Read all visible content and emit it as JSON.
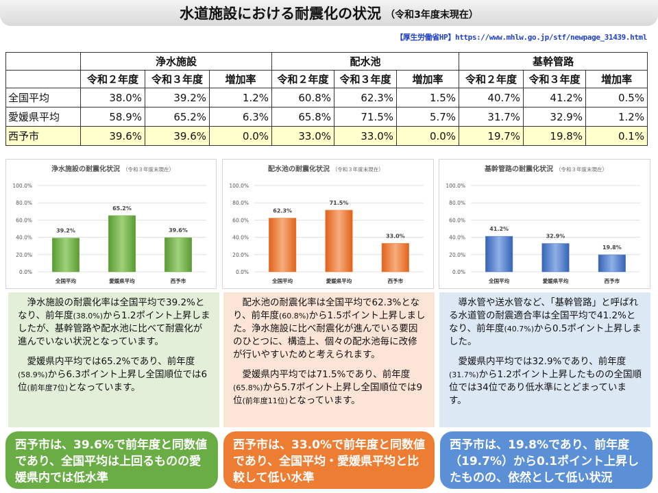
{
  "page": {
    "title": "水道施設における耐震化の状況",
    "subtitle": "（令和3年度末現在）",
    "source": "【厚生労働省HP】https://www.mhlw.go.jp/stf/newpage_31439.html"
  },
  "table": {
    "groups": [
      "浄水施設",
      "配水池",
      "基幹管路"
    ],
    "subheaders": [
      "令和２年度",
      "令和３年度",
      "増加率"
    ],
    "rows": [
      {
        "label": "全国平均",
        "values": [
          "38.0%",
          "39.2%",
          "1.2%",
          "60.8%",
          "62.3%",
          "1.5%",
          "40.7%",
          "41.2%",
          "0.5%"
        ]
      },
      {
        "label": "愛媛県平均",
        "values": [
          "58.9%",
          "65.2%",
          "6.3%",
          "65.8%",
          "71.5%",
          "5.7%",
          "31.7%",
          "32.9%",
          "1.2%"
        ]
      },
      {
        "label": "西予市",
        "values": [
          "39.6%",
          "39.6%",
          "0.0%",
          "33.0%",
          "33.0%",
          "0.0%",
          "19.7%",
          "19.8%",
          "0.1%"
        ]
      }
    ]
  },
  "colors": {
    "green": "#6fae46",
    "orange": "#ee7d34",
    "blue": "#4a78c8",
    "green_bg": "#e3efd9",
    "orange_bg": "#fce4d6",
    "blue_bg": "#dde8f5",
    "summary_green": "#6aad45",
    "summary_orange": "#ee7d34",
    "summary_blue": "#5b8fd6"
  },
  "chart_data": [
    {
      "type": "bar",
      "title": "浄水施設の耐震化状況",
      "title_note": "（令和３年度末現在）",
      "categories": [
        "全国平均",
        "愛媛県平均",
        "西予市"
      ],
      "values": [
        39.2,
        65.2,
        39.6
      ],
      "value_labels": [
        "39.2%",
        "65.2%",
        "39.6%"
      ],
      "ylim": [
        0,
        100
      ],
      "yticks": [
        "0.0%",
        "20.0%",
        "40.0%",
        "60.0%",
        "80.0%",
        "100.0%"
      ],
      "color": "green",
      "grid": true
    },
    {
      "type": "bar",
      "title": "配水池の耐震化状況",
      "title_note": "（令和３年度末現在）",
      "categories": [
        "全国平均",
        "愛媛県平均",
        "西予市"
      ],
      "values": [
        62.3,
        71.5,
        33.0
      ],
      "value_labels": [
        "62.3%",
        "71.5%",
        "33.0%"
      ],
      "ylim": [
        0,
        100
      ],
      "yticks": [
        "0.0%",
        "20.0%",
        "40.0%",
        "60.0%",
        "80.0%",
        "100.0%"
      ],
      "color": "orange",
      "grid": true
    },
    {
      "type": "bar",
      "title": "基幹管路の耐震化状況",
      "title_note": "（令和３年度末現在）",
      "categories": [
        "全国平均",
        "愛媛県平均",
        "西予市"
      ],
      "values": [
        41.2,
        32.9,
        19.8
      ],
      "value_labels": [
        "41.2%",
        "32.9%",
        "19.8%"
      ],
      "ylim": [
        0,
        100
      ],
      "yticks": [
        "0.0%",
        "20.0%",
        "40.0%",
        "60.0%",
        "80.0%",
        "100.0%"
      ],
      "color": "blue",
      "grid": true
    }
  ],
  "descriptions": [
    {
      "p1": [
        "浄水施設の耐震化率は全国平均で39.2%となり、前年度",
        "(38.0%)",
        "から1.2ポイント上昇しましたが、基幹管路や配水池に比べて耐震化が進んでいない状況となっています。"
      ],
      "p2": [
        "愛媛県内平均では65.2%であり、前年度",
        "(58.9%)",
        "から6.3ポイント上昇し全国順位では6位",
        "(前年度7位)",
        "となっています。"
      ]
    },
    {
      "p1": [
        "配水池の耐震化率は全国平均で62.3%となり、前年度",
        "(60.8%)",
        "から1.5ポイント上昇しました。浄水施設に比べ耐震化が進んでいる要因のひとつに、構造上、個々の配水池毎に改修が行いやすいためと考えられます。"
      ],
      "p2": [
        "愛媛県内平均では71.5%であり、前年度",
        "(65.8%)",
        "から5.7ポイント上昇し全国順位では9位",
        "(前年度11位)",
        "となっています。"
      ]
    },
    {
      "p1": [
        "導水管や送水管など、「基幹管路」と呼ばれる水道管の耐震適合率は全国平均で41.2%となり、前年度",
        "(40.7%)",
        "から0.5ポイント上昇しました。"
      ],
      "p2": [
        "愛媛県内平均では32.9%であり、前年度",
        "(31.7%)",
        "から1.2ポイント上昇したものの全国順位では34位であり低水準にとどまっています。"
      ]
    }
  ],
  "summaries": [
    "西予市は、39.6%で前年度と同数値であり、全国平均は上回るものの愛媛県内では低水準",
    "西予市は、33.0%で前年度と同数値であり、全国平均・愛媛県平均と比較して低い水準",
    "西予市は、19.8%であり、前年度（19.7%）から0.1ポイント上昇したものの、依然として低い状況"
  ]
}
